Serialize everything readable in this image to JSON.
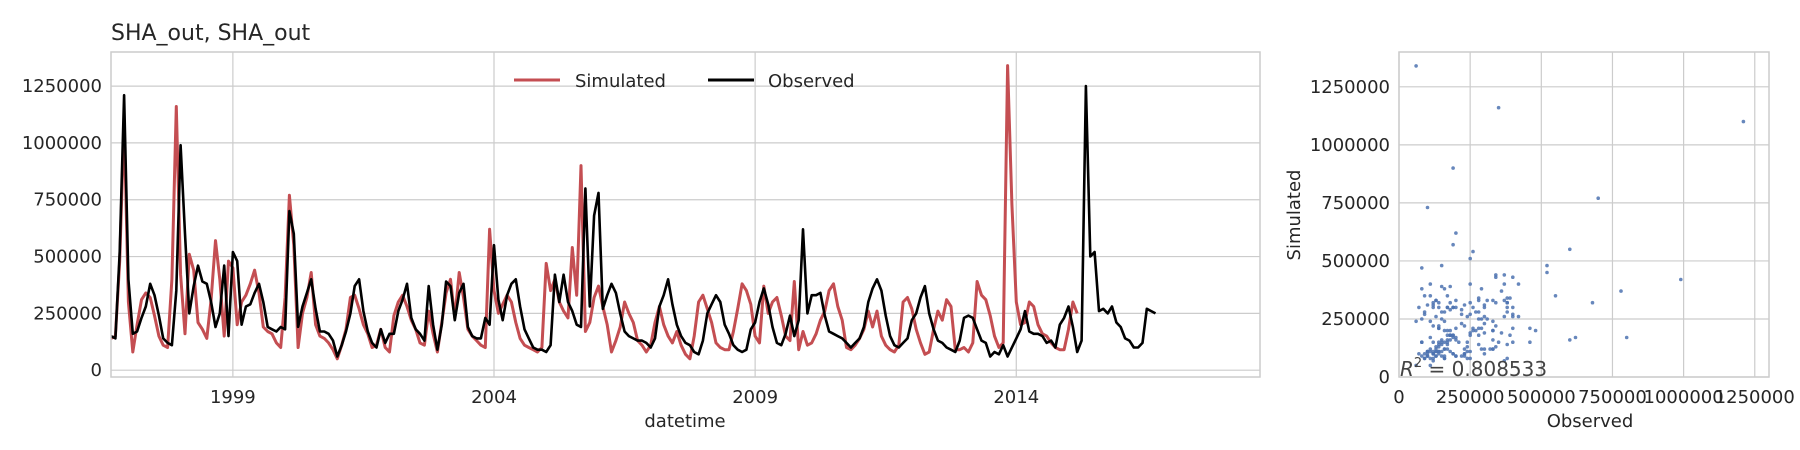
{
  "chart_data": [
    {
      "type": "line",
      "title": "SHA_out, SHA_out",
      "xlabel": "datetime",
      "ylabel": "",
      "x_range": [
        "1996-09",
        "2018-09"
      ],
      "ylim": [
        -30000,
        1400000
      ],
      "x_tick_labels": [
        "1999",
        "2004",
        "2009",
        "2014"
      ],
      "x_tick_years": [
        1999,
        2004,
        2009,
        2014
      ],
      "y_ticks": [
        0,
        250000,
        500000,
        750000,
        1000000,
        1250000
      ],
      "y_tick_labels": [
        "0",
        "250000",
        "500000",
        "750000",
        "1000000",
        "1250000"
      ],
      "grid": true,
      "legend": {
        "placement": "top-center",
        "columns": 2
      },
      "start": "1996-09",
      "series": [
        {
          "name": "Simulated",
          "color": "#c44e52",
          "values": [
            140000,
            150000,
            480000,
            1100000,
            300000,
            80000,
            200000,
            310000,
            340000,
            320000,
            240000,
            150000,
            110000,
            100000,
            400000,
            1160000,
            420000,
            160000,
            510000,
            440000,
            210000,
            180000,
            140000,
            310000,
            570000,
            400000,
            150000,
            480000,
            450000,
            200000,
            300000,
            330000,
            380000,
            440000,
            340000,
            190000,
            170000,
            160000,
            120000,
            100000,
            320000,
            770000,
            550000,
            100000,
            250000,
            320000,
            430000,
            200000,
            150000,
            140000,
            120000,
            90000,
            50000,
            110000,
            180000,
            320000,
            330000,
            270000,
            200000,
            160000,
            100000,
            110000,
            180000,
            100000,
            80000,
            240000,
            300000,
            330000,
            280000,
            220000,
            180000,
            120000,
            110000,
            260000,
            160000,
            80000,
            210000,
            340000,
            400000,
            230000,
            430000,
            320000,
            180000,
            150000,
            130000,
            110000,
            100000,
            620000,
            350000,
            250000,
            290000,
            330000,
            300000,
            210000,
            140000,
            110000,
            100000,
            90000,
            80000,
            100000,
            470000,
            350000,
            400000,
            300000,
            260000,
            230000,
            540000,
            330000,
            900000,
            170000,
            210000,
            320000,
            370000,
            280000,
            200000,
            80000,
            130000,
            190000,
            300000,
            250000,
            210000,
            130000,
            110000,
            80000,
            110000,
            210000,
            280000,
            200000,
            150000,
            120000,
            170000,
            110000,
            70000,
            50000,
            150000,
            300000,
            330000,
            270000,
            210000,
            120000,
            100000,
            90000,
            90000,
            170000,
            270000,
            380000,
            350000,
            290000,
            150000,
            120000,
            370000,
            250000,
            300000,
            320000,
            240000,
            150000,
            130000,
            390000,
            90000,
            170000,
            110000,
            120000,
            160000,
            220000,
            260000,
            350000,
            380000,
            280000,
            220000,
            100000,
            90000,
            110000,
            140000,
            180000,
            260000,
            190000,
            260000,
            150000,
            110000,
            90000,
            80000,
            110000,
            300000,
            320000,
            270000,
            180000,
            120000,
            70000,
            80000,
            180000,
            260000,
            220000,
            310000,
            280000,
            90000,
            90000,
            100000,
            80000,
            120000,
            390000,
            330000,
            310000,
            240000,
            150000,
            100000,
            120000,
            1340000,
            730000,
            300000,
            200000,
            210000,
            300000,
            280000,
            200000,
            160000,
            150000,
            120000,
            100000,
            90000,
            90000,
            180000,
            300000,
            250000
          ]
        },
        {
          "name": "Observed",
          "color": "#000000",
          "values": [
            150000,
            140000,
            520000,
            1210000,
            400000,
            160000,
            170000,
            230000,
            280000,
            380000,
            330000,
            240000,
            140000,
            120000,
            110000,
            350000,
            990000,
            600000,
            250000,
            370000,
            460000,
            390000,
            380000,
            300000,
            190000,
            250000,
            460000,
            150000,
            520000,
            480000,
            200000,
            280000,
            290000,
            340000,
            380000,
            300000,
            190000,
            180000,
            170000,
            190000,
            180000,
            700000,
            600000,
            190000,
            280000,
            340000,
            400000,
            270000,
            170000,
            170000,
            160000,
            130000,
            60000,
            110000,
            170000,
            250000,
            370000,
            400000,
            260000,
            170000,
            120000,
            100000,
            180000,
            120000,
            160000,
            160000,
            260000,
            310000,
            380000,
            230000,
            180000,
            160000,
            130000,
            370000,
            200000,
            90000,
            200000,
            390000,
            370000,
            220000,
            340000,
            380000,
            190000,
            150000,
            140000,
            140000,
            230000,
            200000,
            550000,
            310000,
            220000,
            330000,
            380000,
            400000,
            280000,
            180000,
            140000,
            100000,
            90000,
            90000,
            80000,
            110000,
            420000,
            300000,
            420000,
            300000,
            260000,
            200000,
            190000,
            800000,
            280000,
            680000,
            780000,
            270000,
            330000,
            380000,
            340000,
            250000,
            170000,
            150000,
            140000,
            130000,
            130000,
            120000,
            100000,
            140000,
            280000,
            330000,
            400000,
            290000,
            200000,
            150000,
            120000,
            110000,
            80000,
            70000,
            130000,
            250000,
            290000,
            330000,
            300000,
            200000,
            160000,
            110000,
            90000,
            80000,
            90000,
            180000,
            210000,
            300000,
            360000,
            290000,
            190000,
            120000,
            110000,
            160000,
            240000,
            150000,
            220000,
            620000,
            250000,
            330000,
            330000,
            340000,
            240000,
            170000,
            160000,
            150000,
            140000,
            120000,
            100000,
            120000,
            140000,
            190000,
            300000,
            360000,
            400000,
            350000,
            240000,
            150000,
            110000,
            100000,
            120000,
            140000,
            220000,
            250000,
            320000,
            370000,
            250000,
            180000,
            130000,
            120000,
            100000,
            90000,
            80000,
            130000,
            230000,
            240000,
            230000,
            180000,
            130000,
            120000,
            60000,
            80000,
            70000,
            110000,
            60000,
            100000,
            140000,
            180000,
            260000,
            170000,
            160000,
            160000,
            150000,
            120000,
            130000,
            100000,
            200000,
            230000,
            280000,
            190000,
            80000,
            130000,
            1250000,
            500000,
            520000,
            260000,
            270000,
            250000,
            280000,
            210000,
            190000,
            140000,
            130000,
            100000,
            100000,
            120000,
            270000,
            260000,
            250000
          ]
        }
      ]
    },
    {
      "type": "scatter",
      "title": "",
      "xlabel": "Observed",
      "ylabel": "Simulated",
      "xlim": [
        0,
        1300000
      ],
      "ylim": [
        0,
        1400000
      ],
      "x_ticks": [
        0,
        250000,
        500000,
        750000,
        1000000,
        1250000
      ],
      "x_tick_labels": [
        "0",
        "250000",
        "500000",
        "750000",
        "1000000",
        "1250000"
      ],
      "y_ticks": [
        0,
        250000,
        500000,
        750000,
        1000000,
        1250000
      ],
      "y_tick_labels": [
        "0",
        "250000",
        "500000",
        "750000",
        "1000000",
        "1250000"
      ],
      "grid": true,
      "point_color": "#4c72b0",
      "annotation": {
        "prefix": "R",
        "superscript": "2",
        "text": " = 0.808533",
        "placement": "bottom-left"
      }
    }
  ]
}
